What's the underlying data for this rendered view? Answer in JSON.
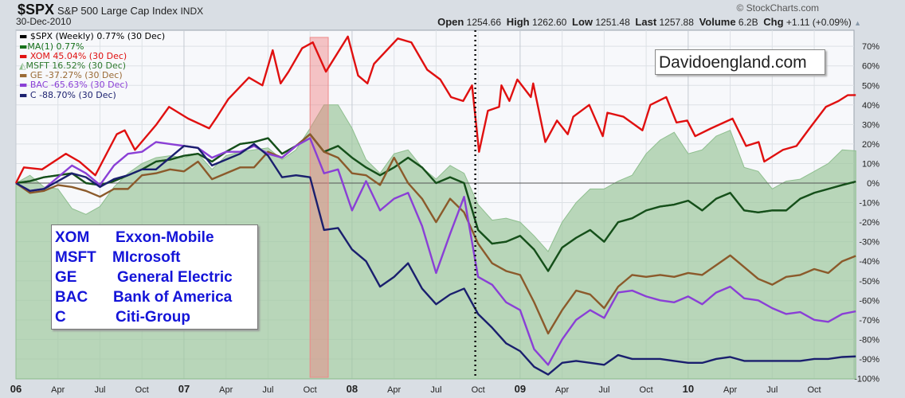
{
  "header": {
    "symbol": "$SPX",
    "name": "S&P 500 Large Cap Index",
    "exchange": "INDX",
    "date": "30-Dec-2010",
    "credit": "© StockCharts.com",
    "quote": {
      "open_label": "Open",
      "open": "1254.66",
      "high_label": "High",
      "high": "1262.60",
      "low_label": "Low",
      "low": "1251.48",
      "last_label": "Last",
      "last": "1257.88",
      "volume_label": "Volume",
      "volume": "6.2B",
      "chg_label": "Chg",
      "chg": "+1.11 (+0.09%)",
      "direction_icon": "triangle-up-icon"
    }
  },
  "legend": [
    "$SPX (Weekly) 0.77% (30 Dec)",
    "MA(1) 0.77%",
    "XOM 45.04% (30 Dec)",
    "MSFT 16.52% (30 Dec)",
    "GE -37.27% (30 Dec)",
    "BAC -65.63% (30 Dec)",
    "C -88.70% (30 Dec)"
  ],
  "name_box": [
    {
      "ticker": "XOM",
      "company": "Exxon-Mobile"
    },
    {
      "ticker": "MSFT",
      "company": "MIcrosoft"
    },
    {
      "ticker": "GE",
      "company": "General Electric"
    },
    {
      "ticker": "BAC",
      "company": "Bank of America"
    },
    {
      "ticker": "C",
      "company": "Citi-Group"
    }
  ],
  "watermark": "Davidoengland.com",
  "chart_data": {
    "type": "line",
    "title": "$SPX S&P 500 Large Cap Index INDX",
    "y_scale": "percent change",
    "ylim": [
      -100,
      75
    ],
    "y_ticks": [
      "70%",
      "60%",
      "50%",
      "40%",
      "30%",
      "20%",
      "10%",
      "0%",
      "-10%",
      "-20%",
      "-30%",
      "-40%",
      "-50%",
      "-60%",
      "-70%",
      "-80%",
      "-90%",
      "-100%"
    ],
    "y_tick_values": [
      70,
      60,
      50,
      40,
      30,
      20,
      10,
      0,
      -10,
      -20,
      -30,
      -40,
      -50,
      -60,
      -70,
      -80,
      -90,
      -100
    ],
    "x_ticks": [
      {
        "label": "06",
        "date": "2006-01",
        "major": true
      },
      {
        "label": "Apr",
        "date": "2006-04"
      },
      {
        "label": "Jul",
        "date": "2006-07"
      },
      {
        "label": "Oct",
        "date": "2006-10"
      },
      {
        "label": "07",
        "date": "2007-01",
        "major": true
      },
      {
        "label": "Apr",
        "date": "2007-04"
      },
      {
        "label": "Jul",
        "date": "2007-07"
      },
      {
        "label": "Oct",
        "date": "2007-10"
      },
      {
        "label": "08",
        "date": "2008-01",
        "major": true
      },
      {
        "label": "Apr",
        "date": "2008-04"
      },
      {
        "label": "Jul",
        "date": "2008-07"
      },
      {
        "label": "Oct",
        "date": "2008-10"
      },
      {
        "label": "09",
        "date": "2009-01",
        "major": true
      },
      {
        "label": "Apr",
        "date": "2009-04"
      },
      {
        "label": "Jul",
        "date": "2009-07"
      },
      {
        "label": "Oct",
        "date": "2009-10"
      },
      {
        "label": "10",
        "date": "2010-01",
        "major": true
      },
      {
        "label": "Apr",
        "date": "2010-04"
      },
      {
        "label": "Jul",
        "date": "2010-07"
      },
      {
        "label": "Oct",
        "date": "2010-10"
      }
    ],
    "xlim": [
      "2006-01",
      "2010-12-30"
    ],
    "grid": true,
    "legend_position": "top-left",
    "highlight_band": {
      "start": "2007-10-01",
      "end": "2007-11-10",
      "color": "#f08080"
    },
    "vertical_marker": {
      "date": "2008-09-25",
      "style": "dotted"
    },
    "dates": [
      "2006-01",
      "2006-02",
      "2006-03",
      "2006-04",
      "2006-05",
      "2006-06",
      "2006-07",
      "2006-08",
      "2006-09",
      "2006-10",
      "2006-11",
      "2006-12",
      "2007-01",
      "2007-02",
      "2007-03",
      "2007-04",
      "2007-05",
      "2007-06",
      "2007-07",
      "2007-08",
      "2007-09",
      "2007-10",
      "2007-11",
      "2007-12",
      "2008-01",
      "2008-02",
      "2008-03",
      "2008-04",
      "2008-05",
      "2008-06",
      "2008-07",
      "2008-08",
      "2008-09",
      "2008-10",
      "2008-11",
      "2008-12",
      "2009-01",
      "2009-02",
      "2009-03",
      "2009-04",
      "2009-05",
      "2009-06",
      "2009-07",
      "2009-08",
      "2009-09",
      "2009-10",
      "2009-11",
      "2009-12",
      "2010-01",
      "2010-02",
      "2010-03",
      "2010-04",
      "2010-05",
      "2010-06",
      "2010-07",
      "2010-08",
      "2010-09",
      "2010-10",
      "2010-11",
      "2010-12",
      "2010-12-30"
    ],
    "series": [
      {
        "name": "MSFT",
        "kind": "area",
        "color": "#9cc79c",
        "values": [
          0,
          4,
          -2,
          -3,
          -13,
          -16,
          -12,
          -2,
          5,
          10,
          13,
          14,
          13,
          15,
          7,
          14,
          16,
          17,
          18,
          12,
          17,
          28,
          40,
          40,
          28,
          12,
          5,
          15,
          17,
          8,
          2,
          9,
          5,
          -11,
          -19,
          -18,
          -20,
          -27,
          -35,
          -20,
          -10,
          -3,
          -3,
          1,
          4,
          15,
          22,
          26,
          15,
          17,
          24,
          27,
          8,
          6,
          -3,
          1,
          2,
          6,
          10,
          17,
          16.52
        ]
      },
      {
        "name": "$SPX",
        "kind": "line",
        "color": "#000000",
        "values": [
          0,
          1,
          3,
          4,
          5,
          0,
          -1,
          1,
          4,
          7,
          11,
          12,
          14,
          15,
          11,
          16,
          20,
          21,
          23,
          15,
          19,
          25,
          16,
          19,
          13,
          8,
          4,
          8,
          13,
          8,
          0,
          3,
          0,
          -24,
          -31,
          -30,
          -27,
          -34,
          -45,
          -33,
          -28,
          -24,
          -30,
          -20,
          -18,
          -14,
          -12,
          -11,
          -9,
          -14,
          -8,
          -5,
          -14,
          -15,
          -14,
          -14,
          -8,
          -5,
          -3,
          -1,
          0.77
        ]
      },
      {
        "name": "MA(1)",
        "kind": "line",
        "color": "#15501a",
        "values": [
          0,
          1,
          3,
          4,
          5,
          0,
          -1,
          1,
          4,
          7,
          11,
          12,
          14,
          15,
          11,
          16,
          20,
          21,
          23,
          15,
          19,
          25,
          16,
          19,
          13,
          8,
          4,
          8,
          13,
          8,
          0,
          3,
          0,
          -24,
          -31,
          -30,
          -27,
          -34,
          -45,
          -33,
          -28,
          -24,
          -30,
          -20,
          -18,
          -14,
          -12,
          -11,
          -9,
          -14,
          -8,
          -5,
          -14,
          -15,
          -14,
          -14,
          -8,
          -5,
          -3,
          -1,
          0.77
        ]
      },
      {
        "name": "GE",
        "kind": "line",
        "color": "#8b5a2b",
        "values": [
          0,
          -5,
          -4,
          -1,
          -2,
          -4,
          -7,
          -3,
          -3,
          4,
          5,
          7,
          6,
          11,
          2,
          5,
          8,
          8,
          16,
          13,
          19,
          25,
          16,
          13,
          5,
          4,
          -1,
          13,
          0,
          -8,
          -20,
          -8,
          -15,
          -31,
          -41,
          -45,
          -47,
          -61,
          -77,
          -65,
          -55,
          -57,
          -64,
          -53,
          -47,
          -48,
          -47,
          -48,
          -46,
          -47,
          -42,
          -37,
          -43,
          -49,
          -52,
          -48,
          -47,
          -44,
          -46,
          -40,
          -37.27
        ]
      },
      {
        "name": "BAC",
        "kind": "line",
        "color": "#8a3fd6",
        "values": [
          0,
          -4,
          -3,
          3,
          9,
          5,
          -1,
          9,
          15,
          16,
          21,
          20,
          19,
          18,
          13,
          16,
          16,
          19,
          15,
          13,
          19,
          23,
          5,
          7,
          -14,
          1,
          -14,
          -8,
          -5,
          -22,
          -46,
          -26,
          -7,
          -48,
          -52,
          -61,
          -65,
          -85,
          -93,
          -80,
          -70,
          -65,
          -69,
          -56,
          -55,
          -58,
          -60,
          -61,
          -58,
          -62,
          -56,
          -53,
          -59,
          -60,
          -64,
          -67,
          -66,
          -70,
          -71,
          -67,
          -65.63
        ]
      },
      {
        "name": "C",
        "kind": "line",
        "color": "#1a1f6e",
        "values": [
          0,
          -4,
          -3,
          1,
          5,
          3,
          -2,
          2,
          4,
          7,
          7,
          13,
          19,
          18,
          9,
          12,
          15,
          20,
          14,
          3,
          4,
          3,
          -24,
          -23,
          -34,
          -40,
          -53,
          -48,
          -41,
          -54,
          -62,
          -57,
          -54,
          -67,
          -74,
          -82,
          -86,
          -94,
          -98,
          -92,
          -91,
          -92,
          -93,
          -88,
          -90,
          -90,
          -90,
          -91,
          -92,
          -92,
          -90,
          -89,
          -91,
          -91,
          -91,
          -91,
          -91,
          -90,
          -90,
          -89,
          -88.7
        ]
      },
      {
        "name": "XOM",
        "kind": "line",
        "color": "#e01010",
        "points": [
          [
            "2006-01-01",
            0
          ],
          [
            "2006-01-18",
            8
          ],
          [
            "2006-02-27",
            7
          ],
          [
            "2006-04-18",
            15
          ],
          [
            "2006-05-17",
            11
          ],
          [
            "2006-06-21",
            4
          ],
          [
            "2006-08-07",
            25
          ],
          [
            "2006-08-24",
            27
          ],
          [
            "2006-09-16",
            17
          ],
          [
            "2006-11-02",
            30
          ],
          [
            "2006-11-29",
            39
          ],
          [
            "2007-01-10",
            33
          ],
          [
            "2007-02-25",
            28
          ],
          [
            "2007-03-12",
            34
          ],
          [
            "2007-04-06",
            43
          ],
          [
            "2007-05-20",
            54
          ],
          [
            "2007-06-19",
            50
          ],
          [
            "2007-07-11",
            68
          ],
          [
            "2007-07-28",
            51
          ],
          [
            "2007-08-15",
            57
          ],
          [
            "2007-09-14",
            69
          ],
          [
            "2007-10-07",
            72
          ],
          [
            "2007-11-05",
            57
          ],
          [
            "2007-12-22",
            75
          ],
          [
            "2008-01-14",
            55
          ],
          [
            "2008-02-04",
            51
          ],
          [
            "2008-02-18",
            61
          ],
          [
            "2008-04-09",
            74
          ],
          [
            "2008-05-08",
            72
          ],
          [
            "2008-06-12",
            58
          ],
          [
            "2008-07-10",
            53
          ],
          [
            "2008-08-03",
            44
          ],
          [
            "2008-08-29",
            42
          ],
          [
            "2008-09-18",
            50
          ],
          [
            "2008-10-03",
            16
          ],
          [
            "2008-10-22",
            37
          ],
          [
            "2008-11-16",
            39
          ],
          [
            "2008-11-21",
            50
          ],
          [
            "2008-12-08",
            42
          ],
          [
            "2008-12-25",
            53
          ],
          [
            "2009-01-24",
            44
          ],
          [
            "2009-01-29",
            51
          ],
          [
            "2009-02-25",
            21
          ],
          [
            "2009-03-20",
            32
          ],
          [
            "2009-04-13",
            25
          ],
          [
            "2009-04-25",
            34
          ],
          [
            "2009-05-29",
            40
          ],
          [
            "2009-06-28",
            24
          ],
          [
            "2009-07-08",
            36
          ],
          [
            "2009-08-12",
            34
          ],
          [
            "2009-09-23",
            27
          ],
          [
            "2009-10-10",
            40
          ],
          [
            "2009-11-14",
            44
          ],
          [
            "2009-12-06",
            31
          ],
          [
            "2009-12-29",
            32
          ],
          [
            "2010-01-16",
            24
          ],
          [
            "2010-02-20",
            28
          ],
          [
            "2010-04-06",
            33
          ],
          [
            "2010-05-05",
            19
          ],
          [
            "2010-06-02",
            21
          ],
          [
            "2010-06-14",
            11
          ],
          [
            "2010-07-24",
            17
          ],
          [
            "2010-08-23",
            19
          ],
          [
            "2010-09-21",
            28
          ],
          [
            "2010-10-26",
            39
          ],
          [
            "2010-11-23",
            42
          ],
          [
            "2010-12-13",
            45
          ],
          [
            "2010-12-30",
            45.04
          ]
        ]
      }
    ]
  }
}
